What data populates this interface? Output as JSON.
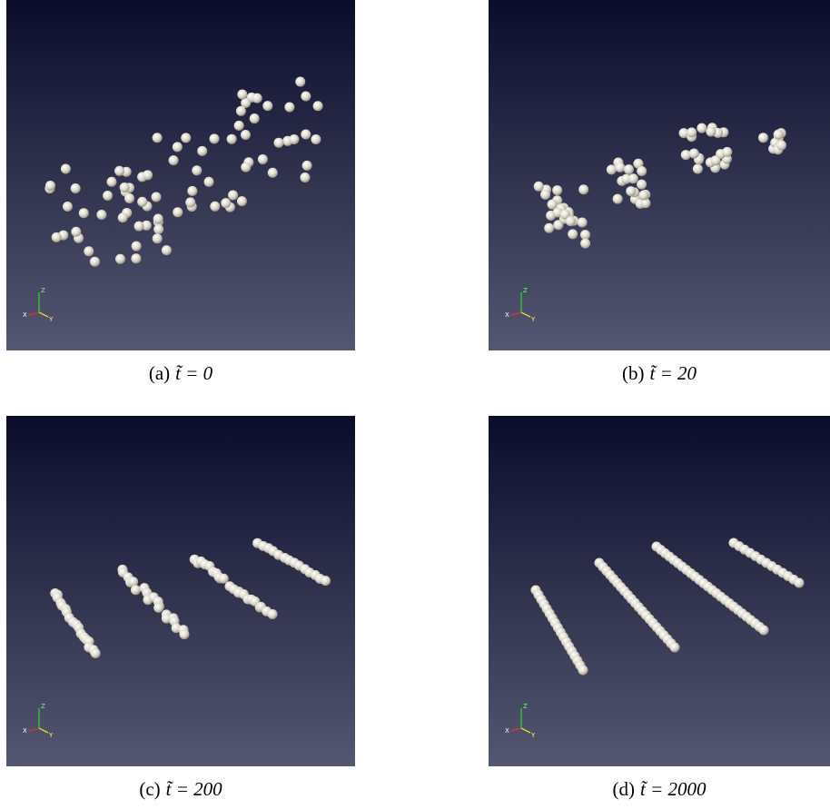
{
  "figure": {
    "axis_labels": [
      "X",
      "Y",
      "Z"
    ],
    "panels": [
      {
        "label": "(a)",
        "caption": "t̃ = 0"
      },
      {
        "label": "(b)",
        "caption": "t̃ = 20"
      },
      {
        "label": "(c)",
        "caption": "t̃ = 200"
      },
      {
        "label": "(d)",
        "caption": "t̃ = 2000"
      }
    ]
  }
}
